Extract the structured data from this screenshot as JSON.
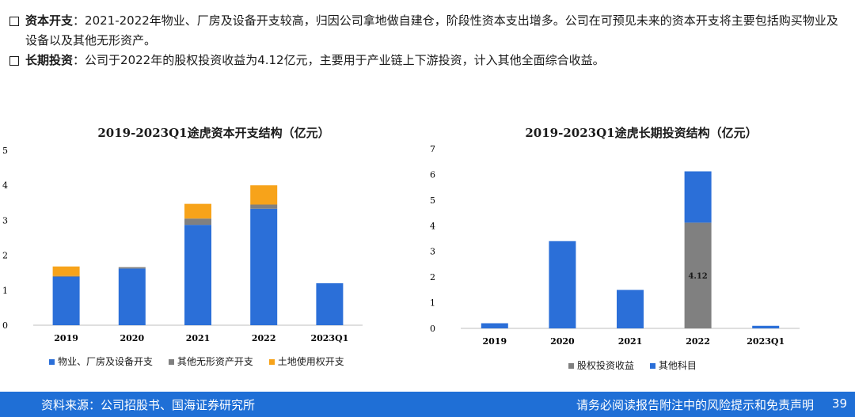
{
  "bullets": [
    {
      "term": "资本开支",
      "sep": "：",
      "text": "2021-2022年物业、厂房及设备开支较高，归因公司拿地做自建仓，阶段性资本支出增多。公司在可预见未来的资本开支将主要包括购买物业及设备以及其他无形资产。"
    },
    {
      "term": "长期投资",
      "sep": "：",
      "text": "公司于2022年的股权投资收益为4.12亿元，主要用于产业链上下游投资，计入其他全面综合收益。"
    }
  ],
  "colors": {
    "blue": "#2b6fd8",
    "gray": "#808080",
    "orange": "#f7a31a",
    "footer": "#1f6fd6"
  },
  "chart_data": [
    {
      "type": "bar",
      "stacked": true,
      "title": "2019-2023Q1途虎资本开支结构（亿元）",
      "categories": [
        "2019",
        "2020",
        "2021",
        "2022",
        "2023Q1"
      ],
      "yticks": [
        "0",
        "1",
        "2",
        "3",
        "4",
        "5"
      ],
      "ylim": [
        0,
        5
      ],
      "series": [
        {
          "name": "物业、厂房及设备开支",
          "color": "#2b6fd8",
          "values": [
            1.38,
            1.62,
            2.87,
            3.33,
            1.2
          ]
        },
        {
          "name": "其他无形资产开支",
          "color": "#808080",
          "values": [
            0.03,
            0.04,
            0.18,
            0.12,
            0.0
          ]
        },
        {
          "name": "土地使用权开支",
          "color": "#f7a31a",
          "values": [
            0.27,
            0.0,
            0.42,
            0.55,
            0.0
          ]
        }
      ],
      "grid": false,
      "legend": "bottom"
    },
    {
      "type": "bar",
      "stacked": true,
      "title": "2019-2023Q1途虎长期投资结构（亿元）",
      "categories": [
        "2019",
        "2020",
        "2021",
        "2022",
        "2023Q1"
      ],
      "yticks": [
        "0",
        "1",
        "2",
        "3",
        "4",
        "5",
        "6",
        "7"
      ],
      "ylim": [
        0,
        7
      ],
      "series": [
        {
          "name": "股权投资收益",
          "color": "#808080",
          "values": [
            0,
            0,
            0,
            4.12,
            0
          ]
        },
        {
          "name": "其他科目",
          "color": "#2b6fd8",
          "values": [
            0.2,
            3.4,
            1.5,
            2.0,
            0.1
          ]
        }
      ],
      "data_labels": [
        {
          "category": "2022",
          "series": "股权投资收益",
          "text": "4.12"
        }
      ],
      "grid": false,
      "legend": "bottom"
    }
  ],
  "footer": {
    "source": "资料来源：公司招股书、国海证券研究所",
    "disclaimer": "请务必阅读报告附注中的风险提示和免责声明",
    "page": "39"
  }
}
